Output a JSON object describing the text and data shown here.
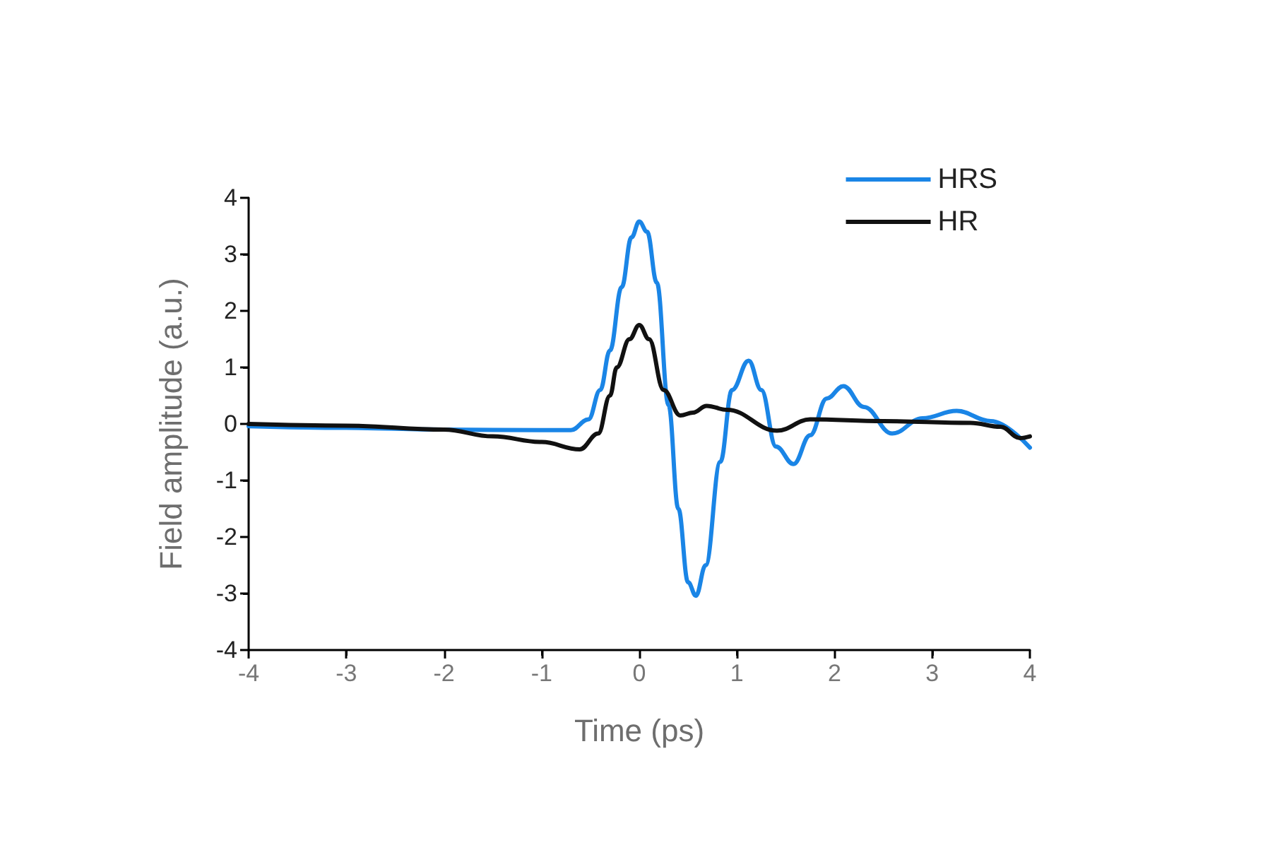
{
  "chart_data": {
    "type": "line",
    "xlabel": "Time (ps)",
    "ylabel": "Field amplitude (a.u.)",
    "xlim": [
      -4,
      4
    ],
    "ylim": [
      -4,
      4
    ],
    "xticks": [
      -4,
      -3,
      -2,
      -1,
      0,
      1,
      2,
      3,
      4
    ],
    "yticks": [
      -4,
      -3,
      -2,
      -1,
      0,
      1,
      2,
      3,
      4
    ],
    "grid": false,
    "legend": "top right",
    "marker": "none",
    "line_style": "solid",
    "series": [
      {
        "name": "HRS",
        "color": "#1a85e6",
        "x": [
          -4,
          -3,
          -2,
          -1,
          -0.7,
          -0.52,
          -0.4,
          -0.3,
          -0.18,
          -0.08,
          0,
          0.08,
          0.18,
          0.3,
          0.4,
          0.5,
          0.58,
          0.68,
          0.83,
          0.95,
          1.12,
          1.25,
          1.4,
          1.58,
          1.75,
          1.92,
          2.09,
          2.3,
          2.59,
          2.9,
          3.25,
          3.6,
          4
        ],
        "values": [
          -0.04,
          -0.07,
          -0.1,
          -0.11,
          -0.11,
          0.08,
          0.6,
          1.3,
          2.42,
          3.3,
          3.58,
          3.4,
          2.5,
          0.33,
          -1.5,
          -2.8,
          -3.04,
          -2.5,
          -0.67,
          0.6,
          1.12,
          0.6,
          -0.4,
          -0.71,
          -0.2,
          0.45,
          0.67,
          0.3,
          -0.17,
          0.1,
          0.23,
          0.05,
          -0.42
        ]
      },
      {
        "name": "HR",
        "color": "#111111",
        "x": [
          -4,
          -3,
          -2,
          -1.5,
          -1,
          -0.61,
          -0.42,
          -0.3,
          -0.23,
          -0.1,
          0,
          0.1,
          0.25,
          0.42,
          0.55,
          0.69,
          0.9,
          1.41,
          1.75,
          2.5,
          3.39,
          3.7,
          3.9,
          4
        ],
        "values": [
          0,
          -0.03,
          -0.1,
          -0.22,
          -0.32,
          -0.45,
          -0.17,
          0.5,
          1,
          1.5,
          1.75,
          1.5,
          0.6,
          0.15,
          0.2,
          0.32,
          0.25,
          -0.12,
          0.08,
          0.05,
          0.02,
          -0.05,
          -0.25,
          -0.22
        ]
      }
    ]
  }
}
